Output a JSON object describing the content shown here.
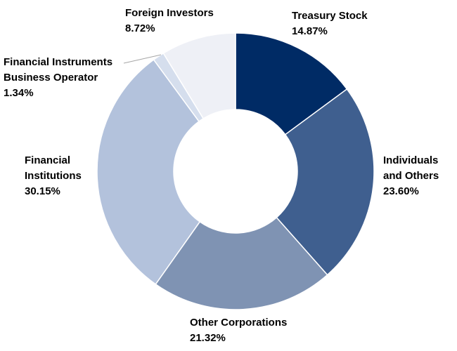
{
  "chart_data": {
    "type": "donut",
    "categories": [
      "Treasury Stock",
      "Individuals and Others",
      "Other Corporations",
      "Financial Institutions",
      "Financial Instruments Business Operator",
      "Foreign Investors"
    ],
    "values": [
      14.87,
      23.6,
      21.32,
      30.15,
      1.34,
      8.72
    ],
    "value_labels": [
      "14.87%",
      "23.60%",
      "21.32%",
      "30.15%",
      "1.34%",
      "8.72%"
    ],
    "colors": [
      "#002b65",
      "#3f5f8f",
      "#7f93b3",
      "#b3c2dc",
      "#d5deed",
      "#eef0f6"
    ]
  }
}
